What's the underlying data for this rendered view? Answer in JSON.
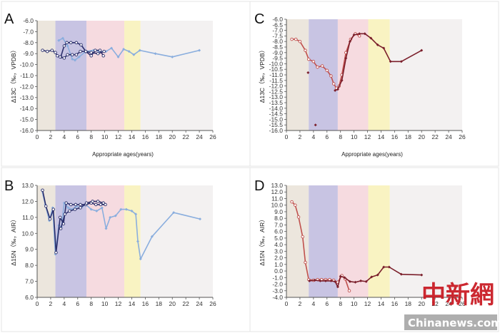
{
  "watermark": {
    "logo_text": "中新網",
    "site": "Chinanews.com"
  },
  "chart_data": [
    {
      "panel": "A",
      "type": "line",
      "xlabel": "Appropriate ages(years)",
      "ylabel": "Δ13C（‰，VPDB）",
      "xlim": [
        0,
        26
      ],
      "ylim": [
        -16.0,
        -6.0
      ],
      "y_tick_step": 1.0,
      "y_tick_format": 1,
      "y_inverted": true,
      "bands": [
        {
          "from": 0,
          "to": 2.7,
          "color": "#ece6dd"
        },
        {
          "from": 2.7,
          "to": 7.3,
          "color": "#c8c4e3"
        },
        {
          "from": 7.3,
          "to": 12.9,
          "color": "#f6dbe0"
        },
        {
          "from": 12.9,
          "to": 15.3,
          "color": "#f9f3c2"
        },
        {
          "from": 15.3,
          "to": 26,
          "color": "#f3f1f1"
        }
      ],
      "series": [
        {
          "color": "#8aaede",
          "marker": "diamond",
          "points": [
            [
              3.2,
              -7.8
            ],
            [
              3.8,
              -7.6
            ],
            [
              4.5,
              -8.3
            ],
            [
              5.2,
              -9.5
            ],
            [
              5.6,
              -9.6
            ],
            [
              6.2,
              -9.3
            ],
            [
              7.2,
              -8.8
            ],
            [
              8.3,
              -8.7
            ],
            [
              9.2,
              -8.8
            ],
            [
              10.2,
              -8.8
            ],
            [
              11.0,
              -8.5
            ],
            [
              12.0,
              -9.3
            ],
            [
              12.8,
              -8.6
            ],
            [
              13.6,
              -8.8
            ],
            [
              14.3,
              -9.1
            ],
            [
              15.2,
              -8.7
            ],
            [
              17.5,
              -9.0
            ],
            [
              20.0,
              -9.3
            ],
            [
              24.0,
              -8.7
            ]
          ]
        },
        {
          "color": "#2b2f6b",
          "marker": "open",
          "points": [
            [
              0.8,
              -8.7
            ],
            [
              1.5,
              -8.8
            ],
            [
              2.2,
              -8.7
            ],
            [
              2.7,
              -8.9
            ],
            [
              3.0,
              -9.2
            ],
            [
              3.5,
              -9.3
            ],
            [
              4.0,
              -8.3
            ],
            [
              4.4,
              -8.0
            ],
            [
              5.0,
              -8.0
            ],
            [
              5.8,
              -8.0
            ],
            [
              6.5,
              -8.2
            ],
            [
              7.2,
              -8.8
            ],
            [
              8.0,
              -9.2
            ],
            [
              8.6,
              -8.7
            ],
            [
              9.3,
              -8.7
            ],
            [
              9.8,
              -9.2
            ]
          ]
        },
        {
          "color": "#2b2f6b",
          "marker": "open",
          "points": [
            [
              3.4,
              -9.3
            ],
            [
              4.0,
              -9.4
            ],
            [
              4.5,
              -9.1
            ],
            [
              5.2,
              -9.1
            ],
            [
              5.8,
              -9.1
            ],
            [
              6.4,
              -8.8
            ],
            [
              7.2,
              -8.8
            ],
            [
              8.0,
              -8.9
            ],
            [
              9.0,
              -9.0
            ],
            [
              9.9,
              -8.8
            ]
          ]
        }
      ]
    },
    {
      "panel": "C",
      "type": "line",
      "xlabel": "Appropriate ages(years)",
      "ylabel": "Δ13C（‰，VPDB）",
      "xlim": [
        0,
        26
      ],
      "ylim": [
        -16.0,
        -6.0
      ],
      "y_tick_step": 0.5,
      "y_tick_format": 1,
      "y_inverted": true,
      "bands": [
        {
          "from": 0,
          "to": 3.3,
          "color": "#ece6dd"
        },
        {
          "from": 3.3,
          "to": 7.6,
          "color": "#c8c4e3"
        },
        {
          "from": 7.6,
          "to": 12.1,
          "color": "#f6dbe0"
        },
        {
          "from": 12.1,
          "to": 15.3,
          "color": "#f9f3c2"
        },
        {
          "from": 15.3,
          "to": 26,
          "color": "#f3f1f1"
        }
      ],
      "series": [
        {
          "color": "#c0504d",
          "marker": "open",
          "points": [
            [
              0.8,
              -7.8
            ],
            [
              1.4,
              -7.8
            ],
            [
              2.0,
              -8.0
            ],
            [
              2.8,
              -8.8
            ],
            [
              3.3,
              -9.6
            ],
            [
              4.0,
              -9.8
            ],
            [
              4.6,
              -10.3
            ],
            [
              5.3,
              -10.2
            ],
            [
              6.0,
              -10.6
            ],
            [
              6.6,
              -11.1
            ],
            [
              7.0,
              -11.8
            ],
            [
              7.4,
              -12.2
            ],
            [
              7.8,
              -12.0
            ],
            [
              8.2,
              -11.0
            ],
            [
              8.8,
              -9.0
            ],
            [
              9.5,
              -7.8
            ],
            [
              10.2,
              -7.3
            ],
            [
              10.8,
              -7.5
            ]
          ]
        },
        {
          "color": "#7b1f2b",
          "marker": "diamond",
          "points": [
            [
              7.2,
              -12.4
            ],
            [
              7.6,
              -12.3
            ],
            [
              8.2,
              -11.5
            ],
            [
              8.8,
              -9.5
            ],
            [
              9.4,
              -8.0
            ],
            [
              10.0,
              -7.4
            ],
            [
              10.8,
              -7.3
            ],
            [
              11.6,
              -7.3
            ],
            [
              12.5,
              -7.7
            ],
            [
              13.5,
              -8.3
            ],
            [
              14.4,
              -8.6
            ],
            [
              15.4,
              -9.8
            ],
            [
              17.0,
              -9.8
            ],
            [
              20.0,
              -8.8
            ]
          ]
        },
        {
          "color": "#7b1f2b",
          "marker": "diamond-only",
          "points": [
            [
              3.2,
              -10.8
            ],
            [
              4.3,
              -15.5
            ]
          ]
        }
      ]
    },
    {
      "panel": "B",
      "type": "line",
      "xlabel": "",
      "ylabel": "Δ15N（‰，AIR）",
      "xlim": [
        0,
        26
      ],
      "ylim": [
        6.0,
        13.0
      ],
      "y_tick_step": 1.0,
      "y_tick_format": 1,
      "y_inverted": false,
      "bands": [
        {
          "from": 0,
          "to": 2.7,
          "color": "#ece6dd"
        },
        {
          "from": 2.7,
          "to": 7.3,
          "color": "#c8c4e3"
        },
        {
          "from": 7.3,
          "to": 12.9,
          "color": "#f6dbe0"
        },
        {
          "from": 12.9,
          "to": 15.3,
          "color": "#f9f3c2"
        },
        {
          "from": 15.3,
          "to": 26,
          "color": "#f3f1f1"
        }
      ],
      "series": [
        {
          "color": "#8aaede",
          "marker": "diamond",
          "points": [
            [
              0.7,
              12.7
            ],
            [
              1.2,
              11.8
            ],
            [
              1.8,
              10.8
            ],
            [
              2.3,
              11.6
            ],
            [
              2.7,
              8.7
            ],
            [
              3.2,
              10.5
            ],
            [
              3.6,
              10.4
            ],
            [
              4.0,
              11.9
            ],
            [
              4.6,
              11.6
            ],
            [
              5.2,
              11.5
            ],
            [
              5.8,
              11.7
            ],
            [
              6.5,
              11.6
            ],
            [
              7.2,
              11.8
            ],
            [
              8.0,
              11.5
            ],
            [
              8.8,
              11.4
            ],
            [
              9.6,
              11.6
            ],
            [
              10.2,
              10.3
            ],
            [
              10.8,
              11.0
            ],
            [
              11.6,
              11.1
            ],
            [
              12.4,
              11.5
            ],
            [
              13.2,
              11.5
            ],
            [
              14.0,
              11.4
            ],
            [
              14.6,
              11.2
            ],
            [
              14.9,
              9.5
            ],
            [
              15.3,
              8.4
            ],
            [
              17.0,
              9.8
            ],
            [
              20.2,
              11.3
            ],
            [
              24.1,
              10.9
            ]
          ]
        },
        {
          "color": "#2b2f6b",
          "marker": "open",
          "points": [
            [
              0.8,
              12.7
            ],
            [
              1.3,
              11.7
            ],
            [
              1.9,
              10.9
            ],
            [
              2.4,
              11.5
            ],
            [
              2.8,
              8.8
            ],
            [
              3.4,
              11.0
            ],
            [
              3.9,
              10.6
            ],
            [
              4.3,
              11.9
            ],
            [
              5.0,
              11.8
            ],
            [
              5.7,
              11.8
            ],
            [
              6.4,
              11.8
            ],
            [
              7.2,
              11.8
            ],
            [
              8.0,
              11.9
            ],
            [
              8.7,
              11.8
            ],
            [
              9.4,
              11.8
            ],
            [
              10.1,
              11.8
            ]
          ]
        },
        {
          "color": "#2b2f6b",
          "marker": "open",
          "points": [
            [
              3.5,
              10.3
            ],
            [
              4.1,
              11.2
            ],
            [
              4.8,
              11.4
            ],
            [
              5.6,
              11.5
            ],
            [
              6.4,
              11.6
            ],
            [
              7.3,
              11.9
            ],
            [
              8.2,
              12.0
            ],
            [
              9.0,
              12.0
            ],
            [
              9.8,
              11.9
            ]
          ]
        }
      ]
    },
    {
      "panel": "D",
      "type": "line",
      "xlabel": "",
      "ylabel": "Δ15N（‰，AIR）",
      "xlim": [
        0,
        26
      ],
      "ylim": [
        -4.0,
        13.0
      ],
      "y_tick_step": 1.0,
      "y_tick_format": 1,
      "y_inverted": false,
      "bands": [
        {
          "from": 0,
          "to": 3.3,
          "color": "#ece6dd"
        },
        {
          "from": 3.3,
          "to": 7.6,
          "color": "#c8c4e3"
        },
        {
          "from": 7.6,
          "to": 12.1,
          "color": "#f6dbe0"
        },
        {
          "from": 12.1,
          "to": 15.3,
          "color": "#f9f3c2"
        },
        {
          "from": 15.3,
          "to": 26,
          "color": "#f3f1f1"
        }
      ],
      "series": [
        {
          "color": "#c0504d",
          "marker": "open",
          "points": [
            [
              0.8,
              10.5
            ],
            [
              1.3,
              10.0
            ],
            [
              1.8,
              8.2
            ],
            [
              2.4,
              5.2
            ],
            [
              2.8,
              1.3
            ],
            [
              3.3,
              -1.3
            ],
            [
              4.0,
              -1.4
            ],
            [
              4.6,
              -1.3
            ],
            [
              5.2,
              -1.3
            ],
            [
              5.8,
              -1.3
            ],
            [
              6.4,
              -1.3
            ],
            [
              7.0,
              -1.4
            ],
            [
              7.6,
              -1.7
            ],
            [
              8.2,
              -0.7
            ],
            [
              8.7,
              -1.2
            ],
            [
              9.3,
              -3.0
            ]
          ]
        },
        {
          "color": "#7b1f2b",
          "marker": "diamond",
          "points": [
            [
              3.4,
              -1.5
            ],
            [
              4.2,
              -1.4
            ],
            [
              5.0,
              -1.5
            ],
            [
              5.8,
              -1.5
            ],
            [
              6.6,
              -1.5
            ],
            [
              7.2,
              -1.6
            ],
            [
              7.6,
              -2.4
            ],
            [
              8.0,
              -0.8
            ],
            [
              8.6,
              -1.0
            ],
            [
              9.4,
              -1.6
            ],
            [
              10.2,
              -1.7
            ],
            [
              11.0,
              -1.5
            ],
            [
              11.8,
              -1.6
            ],
            [
              12.6,
              -0.9
            ],
            [
              13.5,
              -0.6
            ],
            [
              14.4,
              0.6
            ],
            [
              15.2,
              0.6
            ],
            [
              17.0,
              -0.5
            ],
            [
              20.0,
              -0.6
            ]
          ]
        }
      ]
    }
  ]
}
